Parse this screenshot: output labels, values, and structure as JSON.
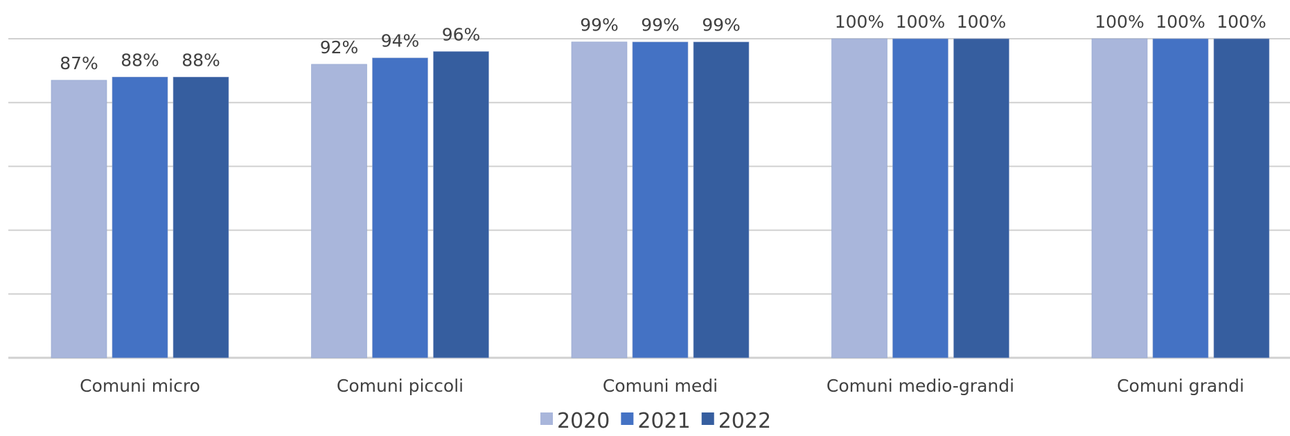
{
  "chart_data": {
    "type": "bar",
    "categories": [
      "Comuni micro",
      "Comuni piccoli",
      "Comuni medi",
      "Comuni medio-grandi",
      "Comuni grandi"
    ],
    "series": [
      {
        "name": "2020",
        "values": [
          87,
          92,
          99,
          100,
          100
        ],
        "labels": [
          "87%",
          "92%",
          "99%",
          "100%",
          "100%"
        ],
        "color": "#A9B6DB"
      },
      {
        "name": "2021",
        "values": [
          88,
          94,
          99,
          100,
          100
        ],
        "labels": [
          "88%",
          "94%",
          "99%",
          "100%",
          "100%"
        ],
        "color": "#4472C4"
      },
      {
        "name": "2022",
        "values": [
          88,
          96,
          99,
          100,
          100
        ],
        "labels": [
          "88%",
          "96%",
          "99%",
          "100%",
          "100%"
        ],
        "color": "#365E9F"
      }
    ],
    "ylim": [
      0,
      100
    ],
    "gridlines": [
      0,
      20,
      40,
      60,
      80,
      100
    ],
    "grid": true,
    "legend_position": "bottom",
    "title": "",
    "xlabel": "",
    "ylabel": ""
  }
}
